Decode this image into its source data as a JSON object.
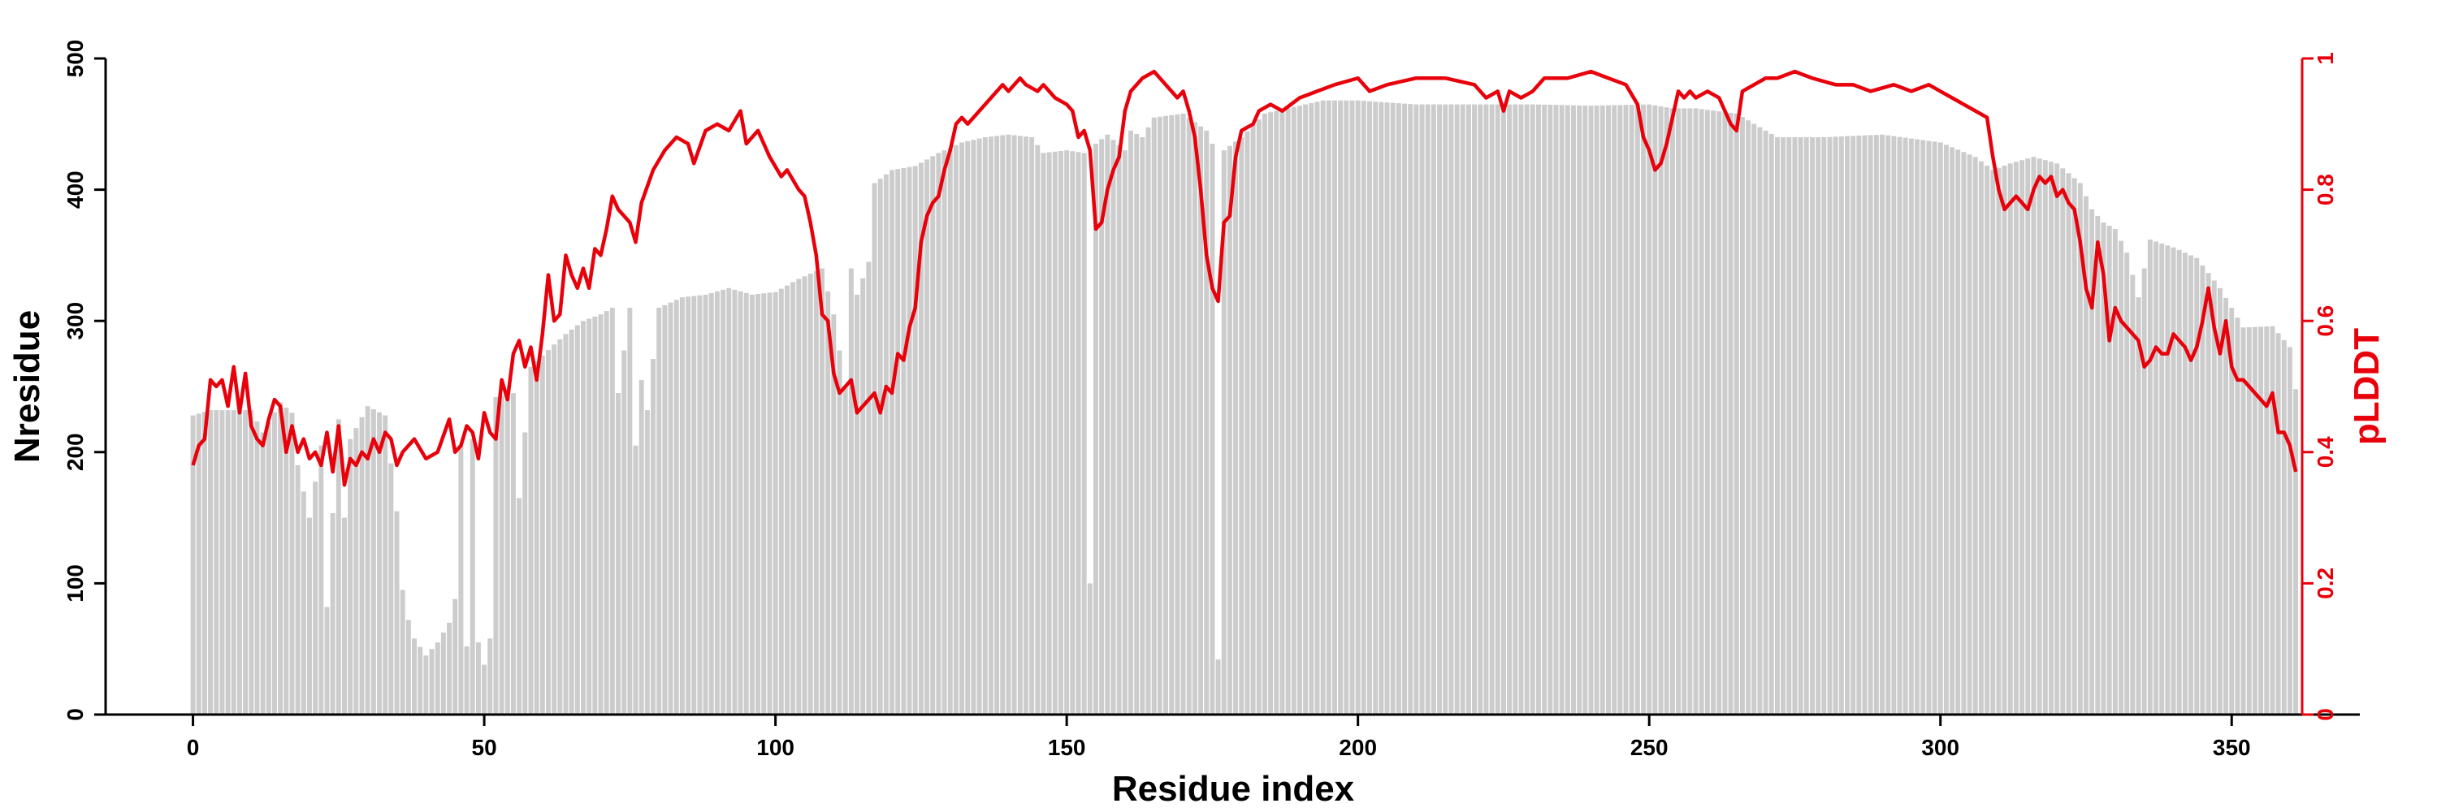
{
  "chart_data": {
    "type": "bar",
    "xlabel": "Residue index",
    "ylabel": "Nresidue",
    "ylabel_right": "pLDDT",
    "xlim": [
      -15,
      372
    ],
    "ylim": [
      0,
      500
    ],
    "ylim_right": [
      0,
      1
    ],
    "x_ticks": [
      0,
      50,
      100,
      150,
      200,
      250,
      300,
      350
    ],
    "y_ticks": [
      0,
      100,
      200,
      300,
      400,
      500
    ],
    "y_right_ticks": [
      0,
      0.2,
      0.4,
      0.6,
      0.8,
      1
    ],
    "x_tick_labels": [
      "0",
      "50",
      "100",
      "150",
      "200",
      "250",
      "300",
      "350"
    ],
    "y_tick_labels": [
      "0",
      "100",
      "200",
      "300",
      "400",
      "500"
    ],
    "y_right_tick_labels": [
      "0",
      "0.2",
      "0.4",
      "0.6",
      "0.8",
      "1"
    ],
    "bar_color": "#cccccc",
    "line_color": "#e8000b",
    "right_axis_color": "#e8000b",
    "grid": false,
    "bar_anchors": [
      [
        0,
        228
      ],
      [
        3,
        232
      ],
      [
        6,
        232
      ],
      [
        10,
        232
      ],
      [
        12,
        215
      ],
      [
        15,
        238
      ],
      [
        17,
        230
      ],
      [
        18,
        190
      ],
      [
        20,
        150
      ],
      [
        22,
        205
      ],
      [
        23,
        82
      ],
      [
        25,
        225
      ],
      [
        26,
        150
      ],
      [
        27,
        210
      ],
      [
        30,
        235
      ],
      [
        33,
        228
      ],
      [
        35,
        155
      ],
      [
        36,
        95
      ],
      [
        37,
        72
      ],
      [
        38,
        58
      ],
      [
        40,
        45
      ],
      [
        42,
        55
      ],
      [
        44,
        70
      ],
      [
        45,
        88
      ],
      [
        46,
        205
      ],
      [
        47,
        52
      ],
      [
        48,
        210
      ],
      [
        49,
        55
      ],
      [
        50,
        38
      ],
      [
        51,
        58
      ],
      [
        52,
        242
      ],
      [
        55,
        245
      ],
      [
        56,
        165
      ],
      [
        58,
        265
      ],
      [
        62,
        282
      ],
      [
        64,
        290
      ],
      [
        67,
        300
      ],
      [
        70,
        305
      ],
      [
        72,
        310
      ],
      [
        73,
        245
      ],
      [
        75,
        310
      ],
      [
        76,
        205
      ],
      [
        77,
        255
      ],
      [
        78,
        232
      ],
      [
        80,
        310
      ],
      [
        84,
        318
      ],
      [
        88,
        320
      ],
      [
        92,
        325
      ],
      [
        96,
        320
      ],
      [
        100,
        322
      ],
      [
        104,
        332
      ],
      [
        108,
        340
      ],
      [
        110,
        305
      ],
      [
        112,
        250
      ],
      [
        113,
        340
      ],
      [
        114,
        320
      ],
      [
        116,
        345
      ],
      [
        117,
        405
      ],
      [
        120,
        415
      ],
      [
        124,
        418
      ],
      [
        128,
        428
      ],
      [
        130,
        432
      ],
      [
        132,
        436
      ],
      [
        136,
        440
      ],
      [
        140,
        442
      ],
      [
        144,
        440
      ],
      [
        146,
        428
      ],
      [
        150,
        430
      ],
      [
        153,
        428
      ],
      [
        154,
        100
      ],
      [
        155,
        435
      ],
      [
        157,
        442
      ],
      [
        160,
        430
      ],
      [
        161,
        445
      ],
      [
        163,
        440
      ],
      [
        165,
        455
      ],
      [
        170,
        458
      ],
      [
        174,
        445
      ],
      [
        175,
        435
      ],
      [
        176,
        42
      ],
      [
        177,
        430
      ],
      [
        180,
        440
      ],
      [
        184,
        458
      ],
      [
        188,
        462
      ],
      [
        194,
        468
      ],
      [
        200,
        468
      ],
      [
        210,
        465
      ],
      [
        220,
        465
      ],
      [
        230,
        465
      ],
      [
        240,
        464
      ],
      [
        250,
        465
      ],
      [
        254,
        462
      ],
      [
        258,
        462
      ],
      [
        265,
        458
      ],
      [
        270,
        445
      ],
      [
        272,
        440
      ],
      [
        280,
        440
      ],
      [
        290,
        442
      ],
      [
        300,
        436
      ],
      [
        306,
        425
      ],
      [
        309,
        415
      ],
      [
        312,
        420
      ],
      [
        316,
        425
      ],
      [
        320,
        420
      ],
      [
        324,
        405
      ],
      [
        326,
        385
      ],
      [
        328,
        375
      ],
      [
        330,
        370
      ],
      [
        332,
        352
      ],
      [
        334,
        318
      ],
      [
        336,
        362
      ],
      [
        340,
        356
      ],
      [
        344,
        348
      ],
      [
        348,
        325
      ],
      [
        352,
        295
      ],
      [
        357,
        296
      ],
      [
        360,
        280
      ],
      [
        361,
        248
      ]
    ],
    "line_anchors": [
      [
        0,
        0.38
      ],
      [
        1,
        0.41
      ],
      [
        2,
        0.42
      ],
      [
        3,
        0.51
      ],
      [
        4,
        0.5
      ],
      [
        5,
        0.51
      ],
      [
        6,
        0.47
      ],
      [
        7,
        0.53
      ],
      [
        8,
        0.46
      ],
      [
        9,
        0.52
      ],
      [
        10,
        0.44
      ],
      [
        11,
        0.42
      ],
      [
        12,
        0.41
      ],
      [
        13,
        0.45
      ],
      [
        14,
        0.48
      ],
      [
        15,
        0.47
      ],
      [
        16,
        0.4
      ],
      [
        17,
        0.44
      ],
      [
        18,
        0.4
      ],
      [
        19,
        0.42
      ],
      [
        20,
        0.39
      ],
      [
        21,
        0.4
      ],
      [
        22,
        0.38
      ],
      [
        23,
        0.43
      ],
      [
        24,
        0.37
      ],
      [
        25,
        0.44
      ],
      [
        26,
        0.35
      ],
      [
        27,
        0.39
      ],
      [
        28,
        0.38
      ],
      [
        29,
        0.4
      ],
      [
        30,
        0.39
      ],
      [
        31,
        0.42
      ],
      [
        32,
        0.4
      ],
      [
        33,
        0.43
      ],
      [
        34,
        0.42
      ],
      [
        35,
        0.38
      ],
      [
        36,
        0.4
      ],
      [
        38,
        0.42
      ],
      [
        40,
        0.39
      ],
      [
        42,
        0.4
      ],
      [
        44,
        0.45
      ],
      [
        45,
        0.4
      ],
      [
        46,
        0.41
      ],
      [
        47,
        0.44
      ],
      [
        48,
        0.43
      ],
      [
        49,
        0.39
      ],
      [
        50,
        0.46
      ],
      [
        51,
        0.43
      ],
      [
        52,
        0.42
      ],
      [
        53,
        0.51
      ],
      [
        54,
        0.48
      ],
      [
        55,
        0.55
      ],
      [
        56,
        0.57
      ],
      [
        57,
        0.53
      ],
      [
        58,
        0.56
      ],
      [
        59,
        0.51
      ],
      [
        60,
        0.58
      ],
      [
        61,
        0.67
      ],
      [
        62,
        0.6
      ],
      [
        63,
        0.61
      ],
      [
        64,
        0.7
      ],
      [
        65,
        0.67
      ],
      [
        66,
        0.65
      ],
      [
        67,
        0.68
      ],
      [
        68,
        0.65
      ],
      [
        69,
        0.71
      ],
      [
        70,
        0.7
      ],
      [
        71,
        0.74
      ],
      [
        72,
        0.79
      ],
      [
        73,
        0.77
      ],
      [
        74,
        0.76
      ],
      [
        75,
        0.75
      ],
      [
        76,
        0.72
      ],
      [
        77,
        0.78
      ],
      [
        79,
        0.83
      ],
      [
        81,
        0.86
      ],
      [
        83,
        0.88
      ],
      [
        85,
        0.87
      ],
      [
        86,
        0.84
      ],
      [
        88,
        0.89
      ],
      [
        90,
        0.9
      ],
      [
        92,
        0.89
      ],
      [
        94,
        0.92
      ],
      [
        95,
        0.87
      ],
      [
        97,
        0.89
      ],
      [
        99,
        0.85
      ],
      [
        101,
        0.82
      ],
      [
        102,
        0.83
      ],
      [
        104,
        0.8
      ],
      [
        105,
        0.79
      ],
      [
        106,
        0.75
      ],
      [
        107,
        0.7
      ],
      [
        108,
        0.61
      ],
      [
        109,
        0.6
      ],
      [
        110,
        0.52
      ],
      [
        111,
        0.49
      ],
      [
        112,
        0.5
      ],
      [
        113,
        0.51
      ],
      [
        114,
        0.46
      ],
      [
        116,
        0.48
      ],
      [
        117,
        0.49
      ],
      [
        118,
        0.46
      ],
      [
        119,
        0.5
      ],
      [
        120,
        0.49
      ],
      [
        121,
        0.55
      ],
      [
        122,
        0.54
      ],
      [
        123,
        0.59
      ],
      [
        124,
        0.62
      ],
      [
        125,
        0.72
      ],
      [
        126,
        0.76
      ],
      [
        127,
        0.78
      ],
      [
        128,
        0.79
      ],
      [
        129,
        0.83
      ],
      [
        130,
        0.86
      ],
      [
        131,
        0.9
      ],
      [
        132,
        0.91
      ],
      [
        133,
        0.9
      ],
      [
        135,
        0.92
      ],
      [
        137,
        0.94
      ],
      [
        139,
        0.96
      ],
      [
        140,
        0.95
      ],
      [
        142,
        0.97
      ],
      [
        143,
        0.96
      ],
      [
        145,
        0.95
      ],
      [
        146,
        0.96
      ],
      [
        148,
        0.94
      ],
      [
        150,
        0.93
      ],
      [
        151,
        0.92
      ],
      [
        152,
        0.88
      ],
      [
        153,
        0.89
      ],
      [
        154,
        0.86
      ],
      [
        155,
        0.74
      ],
      [
        156,
        0.75
      ],
      [
        157,
        0.8
      ],
      [
        158,
        0.83
      ],
      [
        159,
        0.85
      ],
      [
        160,
        0.92
      ],
      [
        161,
        0.95
      ],
      [
        162,
        0.96
      ],
      [
        163,
        0.97
      ],
      [
        165,
        0.98
      ],
      [
        167,
        0.96
      ],
      [
        169,
        0.94
      ],
      [
        170,
        0.95
      ],
      [
        171,
        0.92
      ],
      [
        172,
        0.88
      ],
      [
        173,
        0.8
      ],
      [
        174,
        0.7
      ],
      [
        175,
        0.65
      ],
      [
        176,
        0.63
      ],
      [
        177,
        0.75
      ],
      [
        178,
        0.76
      ],
      [
        179,
        0.85
      ],
      [
        180,
        0.89
      ],
      [
        182,
        0.9
      ],
      [
        183,
        0.92
      ],
      [
        185,
        0.93
      ],
      [
        187,
        0.92
      ],
      [
        190,
        0.94
      ],
      [
        193,
        0.95
      ],
      [
        196,
        0.96
      ],
      [
        200,
        0.97
      ],
      [
        202,
        0.95
      ],
      [
        205,
        0.96
      ],
      [
        210,
        0.97
      ],
      [
        215,
        0.97
      ],
      [
        220,
        0.96
      ],
      [
        222,
        0.94
      ],
      [
        224,
        0.95
      ],
      [
        225,
        0.92
      ],
      [
        226,
        0.95
      ],
      [
        228,
        0.94
      ],
      [
        230,
        0.95
      ],
      [
        232,
        0.97
      ],
      [
        236,
        0.97
      ],
      [
        240,
        0.98
      ],
      [
        243,
        0.97
      ],
      [
        246,
        0.96
      ],
      [
        248,
        0.93
      ],
      [
        249,
        0.88
      ],
      [
        250,
        0.86
      ],
      [
        251,
        0.83
      ],
      [
        252,
        0.84
      ],
      [
        253,
        0.87
      ],
      [
        254,
        0.91
      ],
      [
        255,
        0.95
      ],
      [
        256,
        0.94
      ],
      [
        257,
        0.95
      ],
      [
        258,
        0.94
      ],
      [
        260,
        0.95
      ],
      [
        262,
        0.94
      ],
      [
        263,
        0.92
      ],
      [
        264,
        0.9
      ],
      [
        265,
        0.89
      ],
      [
        266,
        0.95
      ],
      [
        268,
        0.96
      ],
      [
        270,
        0.97
      ],
      [
        272,
        0.97
      ],
      [
        275,
        0.98
      ],
      [
        278,
        0.97
      ],
      [
        282,
        0.96
      ],
      [
        285,
        0.96
      ],
      [
        288,
        0.95
      ],
      [
        292,
        0.96
      ],
      [
        295,
        0.95
      ],
      [
        298,
        0.96
      ],
      [
        300,
        0.95
      ],
      [
        302,
        0.94
      ],
      [
        304,
        0.93
      ],
      [
        306,
        0.92
      ],
      [
        308,
        0.91
      ],
      [
        309,
        0.85
      ],
      [
        310,
        0.8
      ],
      [
        311,
        0.77
      ],
      [
        312,
        0.78
      ],
      [
        313,
        0.79
      ],
      [
        314,
        0.78
      ],
      [
        315,
        0.77
      ],
      [
        316,
        0.8
      ],
      [
        317,
        0.82
      ],
      [
        318,
        0.81
      ],
      [
        319,
        0.82
      ],
      [
        320,
        0.79
      ],
      [
        321,
        0.8
      ],
      [
        322,
        0.78
      ],
      [
        323,
        0.77
      ],
      [
        324,
        0.72
      ],
      [
        325,
        0.65
      ],
      [
        326,
        0.62
      ],
      [
        327,
        0.72
      ],
      [
        328,
        0.67
      ],
      [
        329,
        0.57
      ],
      [
        330,
        0.62
      ],
      [
        331,
        0.6
      ],
      [
        332,
        0.59
      ],
      [
        333,
        0.58
      ],
      [
        334,
        0.57
      ],
      [
        335,
        0.53
      ],
      [
        336,
        0.54
      ],
      [
        337,
        0.56
      ],
      [
        338,
        0.55
      ],
      [
        339,
        0.55
      ],
      [
        340,
        0.58
      ],
      [
        341,
        0.57
      ],
      [
        342,
        0.56
      ],
      [
        343,
        0.54
      ],
      [
        344,
        0.56
      ],
      [
        345,
        0.6
      ],
      [
        346,
        0.65
      ],
      [
        347,
        0.59
      ],
      [
        348,
        0.55
      ],
      [
        349,
        0.6
      ],
      [
        350,
        0.53
      ],
      [
        351,
        0.51
      ],
      [
        352,
        0.51
      ],
      [
        353,
        0.5
      ],
      [
        354,
        0.49
      ],
      [
        355,
        0.48
      ],
      [
        356,
        0.47
      ],
      [
        357,
        0.49
      ],
      [
        358,
        0.43
      ],
      [
        359,
        0.43
      ],
      [
        360,
        0.41
      ],
      [
        361,
        0.37
      ]
    ]
  }
}
